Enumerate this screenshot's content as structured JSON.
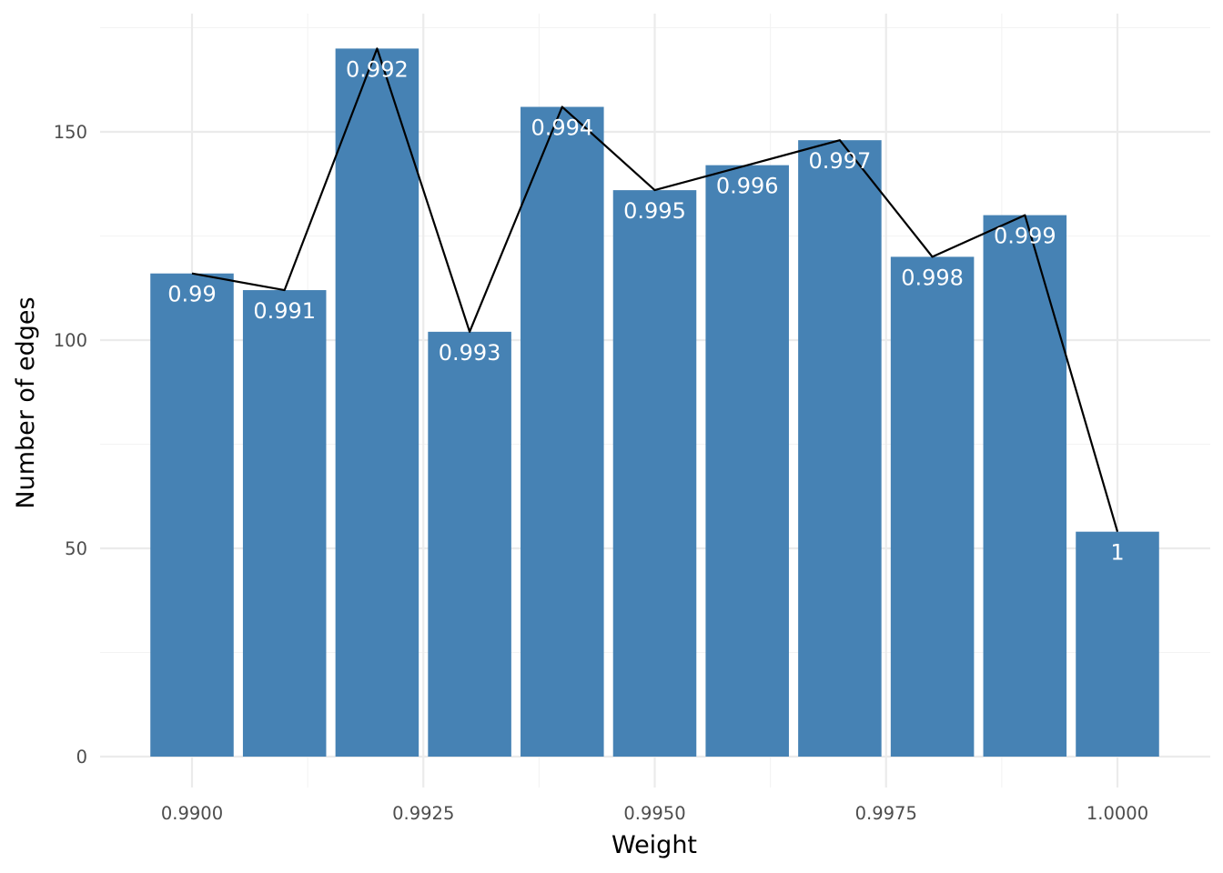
{
  "chart_data": {
    "type": "bar",
    "xlabel": "Weight",
    "ylabel": "Number of edges",
    "x": [
      0.99,
      0.991,
      0.992,
      0.993,
      0.994,
      0.995,
      0.996,
      0.997,
      0.998,
      0.999,
      1.0
    ],
    "values": [
      116,
      112,
      170,
      102,
      156,
      136,
      142,
      148,
      120,
      130,
      54
    ],
    "bar_labels": [
      "0.99",
      "0.991",
      "0.992",
      "0.993",
      "0.994",
      "0.995",
      "0.996",
      "0.997",
      "0.998",
      "0.999",
      "1"
    ],
    "line": {
      "x": [
        0.99,
        0.991,
        0.992,
        0.993,
        0.994,
        0.995,
        0.996,
        0.997,
        0.998,
        0.999,
        1.0
      ],
      "y": [
        116,
        112,
        170,
        102,
        156,
        136,
        142,
        148,
        120,
        130,
        54
      ]
    },
    "x_ticks": [
      0.99,
      0.9925,
      0.995,
      0.9975,
      1.0
    ],
    "x_tick_labels": [
      "0.9900",
      "0.9925",
      "0.9950",
      "0.9975",
      "1.0000"
    ],
    "y_ticks": [
      0,
      50,
      100,
      150
    ],
    "y_tick_labels": [
      "0",
      "50",
      "100",
      "150"
    ],
    "xlim": [
      0.98905,
      1.01005
    ],
    "ylim": [
      0,
      175
    ],
    "grid": true,
    "legend": "none",
    "colors": {
      "bar": "#4682b4",
      "line": "#000000",
      "bar_label": "#ffffff"
    }
  }
}
